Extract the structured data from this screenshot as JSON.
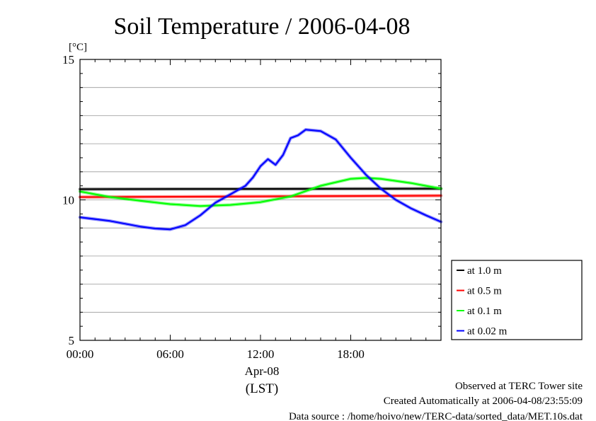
{
  "chart_data": {
    "type": "line",
    "title": "Soil Temperature / 2006-04-08",
    "ylabel": "[°C]",
    "xlabel_date": "Apr-08",
    "xlabel_unit": "(LST)",
    "xlim": [
      0,
      24
    ],
    "ylim": [
      5,
      15
    ],
    "yticks": [
      5,
      10,
      15
    ],
    "ytick_labels": [
      "5",
      "10",
      "15"
    ],
    "xticks": [
      0,
      6,
      12,
      18
    ],
    "xtick_labels": [
      "00:00",
      "06:00",
      "12:00",
      "18:00"
    ],
    "grid": true,
    "legend_position": "right",
    "series": [
      {
        "name": "at 1.0 m",
        "color": "#000000",
        "x": [
          0,
          24
        ],
        "y": [
          10.38,
          10.4
        ]
      },
      {
        "name": "at 0.5 m",
        "color": "#ff0000",
        "x": [
          0,
          24
        ],
        "y": [
          10.1,
          10.15
        ]
      },
      {
        "name": "at 0.1 m",
        "color": "#00ff00",
        "x": [
          0,
          2,
          4,
          6,
          8,
          9,
          10,
          12,
          14,
          16,
          18,
          19,
          20,
          22,
          24
        ],
        "y": [
          10.3,
          10.1,
          9.97,
          9.85,
          9.78,
          9.8,
          9.82,
          9.92,
          10.12,
          10.5,
          10.75,
          10.78,
          10.75,
          10.6,
          10.4
        ]
      },
      {
        "name": "at 0.02 m",
        "color": "#0000ff",
        "x": [
          0,
          2,
          4,
          5,
          6,
          7,
          8,
          9,
          10,
          11,
          11.5,
          12,
          12.5,
          13,
          13.5,
          14,
          14.5,
          15,
          16,
          17,
          18,
          19,
          20,
          21,
          22,
          23,
          24
        ],
        "y": [
          9.38,
          9.25,
          9.05,
          8.98,
          8.95,
          9.1,
          9.45,
          9.9,
          10.2,
          10.5,
          10.8,
          11.2,
          11.45,
          11.25,
          11.6,
          12.2,
          12.3,
          12.5,
          12.45,
          12.15,
          11.5,
          10.9,
          10.4,
          10.0,
          9.7,
          9.45,
          9.22
        ]
      }
    ]
  },
  "footer": {
    "observed": "Observed at TERC Tower site",
    "created": "Created Automatically at 2006-04-08/23:55:09",
    "source": "Data source : /home/hoivo/new/TERC-data/sorted_data/MET.10s.dat"
  }
}
